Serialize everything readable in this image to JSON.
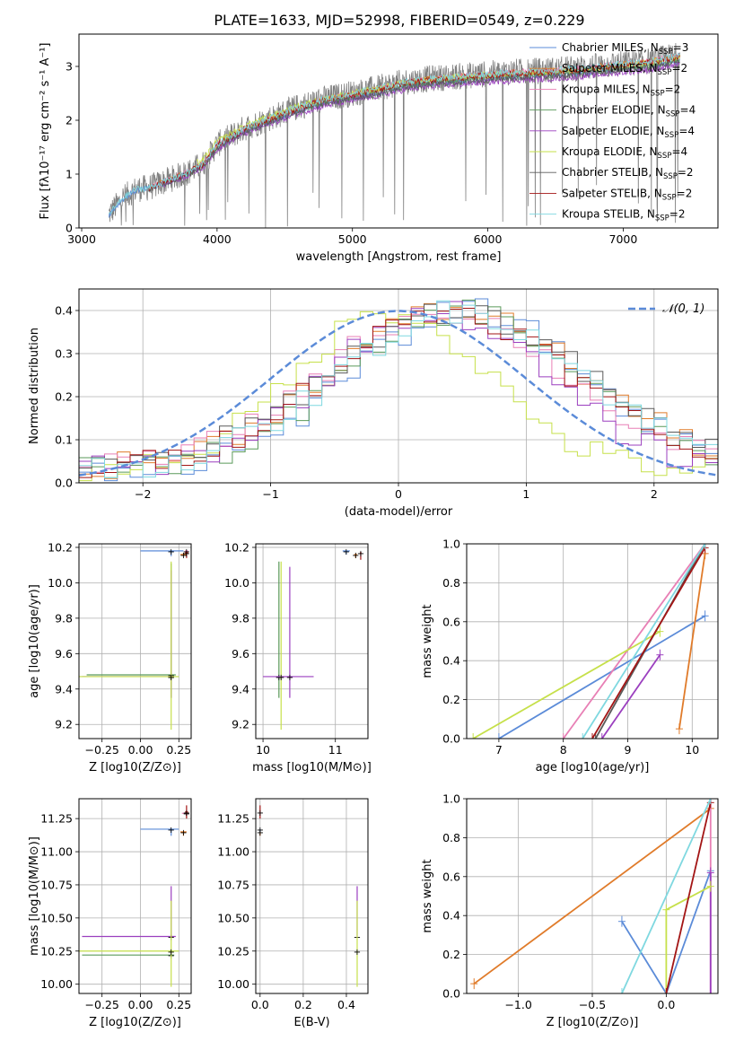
{
  "title": "PLATE=1633, MJD=52998, FIBERID=0549, z=0.229",
  "colors": {
    "spectrum": "#808080",
    "normal_curve": "#5b8bd8",
    "models": [
      "#5b8bd8",
      "#e07b2a",
      "#e87fb5",
      "#5a9a5a",
      "#9b3fbf",
      "#c6e04a",
      "#5a5a5a",
      "#a31515",
      "#7fd8e0"
    ]
  },
  "chart_data": [
    {
      "id": "spectrum",
      "type": "line",
      "xlabel": "wavelength [Angstrom, rest frame]",
      "ylabel": "Flux [fλ10⁻¹⁷ erg cm⁻² s⁻¹ A⁻¹]",
      "xlim": [
        2980,
        7700
      ],
      "ylim": [
        0,
        3.6
      ],
      "xticks": [
        3000,
        4000,
        5000,
        6000,
        7000
      ],
      "yticks": [
        0,
        1,
        2,
        3
      ],
      "grid": false,
      "legend_position": "top-right",
      "legend": [
        "Chabrier MILES, N_SSP=3",
        "Salpeter MILES, N_SSP=2",
        "Kroupa MILES, N_SSP=2",
        "Chabrier ELODIE, N_SSP=4",
        "Salpeter ELODIE, N_SSP=4",
        "Kroupa ELODIE, N_SSP=4",
        "Chabrier STELIB, N_SSP=2",
        "Salpeter STELIB, N_SSP=2",
        "Kroupa STELIB, N_SSP=2"
      ],
      "data_envelope": {
        "x": [
          3200,
          3300,
          3400,
          3500,
          3600,
          3700,
          3800,
          3900,
          4000,
          4200,
          4400,
          4600,
          4800,
          5000,
          5200,
          5400,
          5600,
          5800,
          6000,
          6200,
          6400,
          6600,
          6800,
          7000,
          7200,
          7400
        ],
        "y": [
          0.25,
          0.55,
          0.72,
          0.75,
          0.85,
          0.95,
          1.05,
          1.2,
          1.55,
          1.85,
          2.05,
          2.25,
          2.4,
          2.5,
          2.6,
          2.72,
          2.78,
          2.82,
          2.86,
          2.9,
          2.92,
          2.95,
          3.0,
          3.05,
          3.1,
          3.2
        ]
      }
    },
    {
      "id": "residuals",
      "type": "step",
      "xlabel": "(data-model)/error",
      "ylabel": "Normed distribution",
      "xlim": [
        -2.5,
        2.5
      ],
      "ylim": [
        0,
        0.45
      ],
      "xticks": [
        -2,
        -1,
        0,
        1,
        2
      ],
      "yticks": [
        0.0,
        0.1,
        0.2,
        0.3,
        0.4
      ],
      "grid": true,
      "legend_position": "top-right",
      "normal_label": "𝒩(0, 1)",
      "series_shapes": [
        {
          "peak": 0.55,
          "width": 0.9
        },
        {
          "peak": 0.45,
          "width": 1.0
        },
        {
          "peak": 0.35,
          "width": 0.95
        },
        {
          "peak": 0.5,
          "width": 0.9
        },
        {
          "peak": 0.3,
          "width": 0.85
        },
        {
          "peak": -0.05,
          "width": 0.75
        },
        {
          "peak": 0.45,
          "width": 1.0
        },
        {
          "peak": 0.4,
          "width": 0.95
        },
        {
          "peak": 0.5,
          "width": 0.95
        }
      ]
    },
    {
      "id": "age_vs_Z",
      "type": "errorbar",
      "xlabel": "Z [log10(Z/Z⊙)]",
      "ylabel": "age  [log10(age/yr)]",
      "xlim": [
        -0.4,
        0.33
      ],
      "ylim": [
        9.12,
        10.22
      ],
      "xticks": [
        -0.25,
        0.0,
        0.25
      ],
      "yticks": [
        9.2,
        9.4,
        9.6,
        9.8,
        10.0,
        10.2
      ],
      "grid": true,
      "points": [
        {
          "s": 0,
          "x": 0.2,
          "y": 10.18,
          "xl": 0.2,
          "xh": 0.08,
          "yl": 0.03,
          "yh": 0.0
        },
        {
          "s": 1,
          "x": 0.28,
          "y": 10.16,
          "xl": 0.02,
          "xh": 0.02,
          "yl": 0.01,
          "yh": 0.01
        },
        {
          "s": 2,
          "x": 0.3,
          "y": 10.18,
          "xl": 0.01,
          "xh": 0.01,
          "yl": 0.02,
          "yh": 0.0
        },
        {
          "s": 3,
          "x": 0.2,
          "y": 9.48,
          "xl": 0.55,
          "xh": 0.03,
          "yl": 0.13,
          "yh": 0.63
        },
        {
          "s": 4,
          "x": 0.2,
          "y": 9.47,
          "xl": 0.58,
          "xh": 0.02,
          "yl": 0.12,
          "yh": 0.6
        },
        {
          "s": 5,
          "x": 0.2,
          "y": 9.47,
          "xl": 0.6,
          "xh": 0.05,
          "yl": 0.3,
          "yh": 0.65
        },
        {
          "s": 7,
          "x": 0.3,
          "y": 10.17,
          "xl": 0.01,
          "xh": 0.01,
          "yl": 0.03,
          "yh": 0.0
        }
      ]
    },
    {
      "id": "age_vs_mass",
      "type": "errorbar",
      "xlabel": "mass [log10(M/M⊙)]",
      "ylabel": "",
      "xlim": [
        9.9,
        11.45
      ],
      "ylim": [
        9.12,
        10.22
      ],
      "xticks": [
        10,
        11
      ],
      "yticks": [
        9.2,
        9.4,
        9.6,
        9.8,
        10.0,
        10.2
      ],
      "grid": true,
      "points": [
        {
          "s": 0,
          "x": 11.15,
          "y": 10.18,
          "xl": 0.05,
          "xh": 0.05,
          "yl": 0.02,
          "yh": 0.0
        },
        {
          "s": 1,
          "x": 11.28,
          "y": 10.16,
          "xl": 0.02,
          "xh": 0.02,
          "yl": 0.02,
          "yh": 0.0
        },
        {
          "s": 3,
          "x": 10.22,
          "y": 9.47,
          "xl": 0.0,
          "xh": 0.0,
          "yl": 0.12,
          "yh": 0.65
        },
        {
          "s": 4,
          "x": 10.37,
          "y": 9.47,
          "xl": 0.37,
          "xh": 0.33,
          "yl": 0.12,
          "yh": 0.62
        },
        {
          "s": 5,
          "x": 10.25,
          "y": 9.47,
          "xl": 0.0,
          "xh": 0.0,
          "yl": 0.3,
          "yh": 0.65
        },
        {
          "s": 7,
          "x": 11.35,
          "y": 10.17,
          "xl": 0.01,
          "xh": 0.01,
          "yl": 0.04,
          "yh": 0.0
        }
      ]
    },
    {
      "id": "weight_vs_age",
      "type": "line",
      "xlabel": "age  [log10(age/yr)]",
      "ylabel": "mass weight",
      "xlim": [
        6.5,
        10.4
      ],
      "ylim": [
        0,
        1.0
      ],
      "xticks": [
        7,
        8,
        9,
        10
      ],
      "yticks": [
        0.0,
        0.2,
        0.4,
        0.6,
        0.8,
        1.0
      ],
      "grid": true,
      "lines": [
        {
          "s": 0,
          "x": [
            7.0,
            10.2
          ],
          "y": [
            0.0,
            0.63
          ]
        },
        {
          "s": 1,
          "x": [
            9.8,
            10.2
          ],
          "y": [
            0.05,
            0.95
          ]
        },
        {
          "s": 2,
          "x": [
            8.0,
            10.2
          ],
          "y": [
            0.0,
            1.0
          ]
        },
        {
          "s": 4,
          "x": [
            8.6,
            9.5
          ],
          "y": [
            0.0,
            0.43
          ]
        },
        {
          "s": 5,
          "x": [
            6.6,
            9.5
          ],
          "y": [
            0.0,
            0.55
          ]
        },
        {
          "s": 6,
          "x": [
            8.5,
            10.2
          ],
          "y": [
            0.0,
            1.0
          ]
        },
        {
          "s": 7,
          "x": [
            8.45,
            10.2
          ],
          "y": [
            0.0,
            0.98
          ]
        },
        {
          "s": 8,
          "x": [
            8.3,
            10.2
          ],
          "y": [
            0.0,
            1.0
          ]
        }
      ]
    },
    {
      "id": "mass_vs_Z",
      "type": "errorbar",
      "xlabel": "Z [log10(Z/Z⊙)]",
      "ylabel": "mass [log10(M/M⊙)]",
      "xlim": [
        -0.4,
        0.33
      ],
      "ylim": [
        9.93,
        11.4
      ],
      "xticks": [
        -0.25,
        0.0,
        0.25
      ],
      "yticks": [
        10.0,
        10.25,
        10.5,
        10.75,
        11.0,
        11.25
      ],
      "grid": true,
      "points": [
        {
          "s": 0,
          "x": 0.2,
          "y": 11.17,
          "xl": 0.2,
          "xh": 0.05,
          "yl": 0.05,
          "yh": 0.0
        },
        {
          "s": 1,
          "x": 0.28,
          "y": 11.15,
          "xl": 0.02,
          "xh": 0.02,
          "yl": 0.03,
          "yh": 0.0
        },
        {
          "s": 2,
          "x": 0.3,
          "y": 11.29,
          "xl": 0.03,
          "xh": 0.01,
          "yl": 0.02,
          "yh": 0.0
        },
        {
          "s": 3,
          "x": 0.2,
          "y": 10.22,
          "xl": 0.58,
          "xh": 0.02,
          "yl": 0.0,
          "yh": 0.0
        },
        {
          "s": 4,
          "x": 0.2,
          "y": 10.36,
          "xl": 0.58,
          "xh": 0.03,
          "yl": 0.0,
          "yh": 0.38
        },
        {
          "s": 5,
          "x": 0.2,
          "y": 10.25,
          "xl": 0.6,
          "xh": 0.05,
          "yl": 0.27,
          "yh": 0.38
        },
        {
          "s": 7,
          "x": 0.3,
          "y": 11.3,
          "xl": 0.01,
          "xh": 0.01,
          "yl": 0.05,
          "yh": 0.05
        }
      ]
    },
    {
      "id": "mass_vs_ebv",
      "type": "errorbar",
      "xlabel": "E(B-V)",
      "ylabel": "",
      "xlim": [
        -0.02,
        0.5
      ],
      "ylim": [
        9.93,
        11.4
      ],
      "xticks": [
        0.0,
        0.2,
        0.4
      ],
      "yticks": [
        10.0,
        10.25,
        10.5,
        10.75,
        11.0,
        11.25
      ],
      "grid": true,
      "points": [
        {
          "s": 0,
          "x": 0.0,
          "y": 11.17,
          "xl": 0.0,
          "xh": 0.0,
          "yl": 0.05,
          "yh": 0.0
        },
        {
          "s": 1,
          "x": 0.0,
          "y": 11.15,
          "xl": 0.0,
          "xh": 0.0,
          "yl": 0.03,
          "yh": 0.0
        },
        {
          "s": 7,
          "x": 0.0,
          "y": 11.3,
          "xl": 0.0,
          "xh": 0.0,
          "yl": 0.05,
          "yh": 0.05
        },
        {
          "s": 4,
          "x": 0.45,
          "y": 10.36,
          "xl": 0.0,
          "xh": 0.0,
          "yl": 0.0,
          "yh": 0.38
        },
        {
          "s": 5,
          "x": 0.45,
          "y": 10.25,
          "xl": 0.0,
          "xh": 0.0,
          "yl": 0.27,
          "yh": 0.38
        }
      ]
    },
    {
      "id": "weight_vs_Z",
      "type": "line",
      "xlabel": "Z [log10(Z/Z⊙)]",
      "ylabel": "mass weight",
      "xlim": [
        -1.35,
        0.35
      ],
      "ylim": [
        0,
        1.0
      ],
      "xticks": [
        -1.0,
        -0.5,
        0.0
      ],
      "yticks": [
        0.0,
        0.2,
        0.4,
        0.6,
        0.8,
        1.0
      ],
      "grid": true,
      "lines": [
        {
          "s": 0,
          "x": [
            -0.3,
            0.0,
            0.3
          ],
          "y": [
            0.37,
            0.0,
            0.63
          ]
        },
        {
          "s": 1,
          "x": [
            -1.3,
            0.3
          ],
          "y": [
            0.05,
            0.95
          ]
        },
        {
          "s": 2,
          "x": [
            0.3,
            0.3
          ],
          "y": [
            0.0,
            1.0
          ]
        },
        {
          "s": 4,
          "x": [
            0.3,
            0.3
          ],
          "y": [
            0.0,
            0.62
          ]
        },
        {
          "s": 5,
          "x": [
            0.0,
            0.0,
            0.3
          ],
          "y": [
            0.0,
            0.43,
            0.55
          ]
        },
        {
          "s": 7,
          "x": [
            0.0,
            0.3
          ],
          "y": [
            0.0,
            0.98
          ]
        },
        {
          "s": 8,
          "x": [
            -0.3,
            0.3
          ],
          "y": [
            0.0,
            1.0
          ]
        }
      ]
    }
  ]
}
